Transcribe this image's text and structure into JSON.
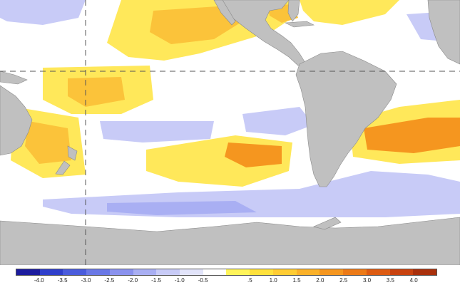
{
  "map": {
    "colors": {
      "land": "#c0c0c0",
      "ocean_neutral": "#ffffff",
      "gridline": "#555555"
    },
    "legend": {
      "bins": [
        "#1c1c9e",
        "#2f3fcb",
        "#4a5cdc",
        "#6a78e6",
        "#8a92ee",
        "#a9aff3",
        "#c8cbf7",
        "#e2e4fa",
        "#ffffff",
        "#fff45a",
        "#ffe13c",
        "#ffcc33",
        "#fbb129",
        "#f5961f",
        "#ec7a17",
        "#dd5b12",
        "#c8420f",
        "#a9300c"
      ],
      "tick_labels": [
        "-4.0",
        "-3.5",
        "-3.0",
        "-2.5",
        "-2.0",
        "-1.5",
        "-1.0",
        "-0.5",
        ".5",
        "1.0",
        "1.5",
        "2.0",
        "2.5",
        "3.0",
        "3.5",
        "4.0"
      ]
    }
  }
}
